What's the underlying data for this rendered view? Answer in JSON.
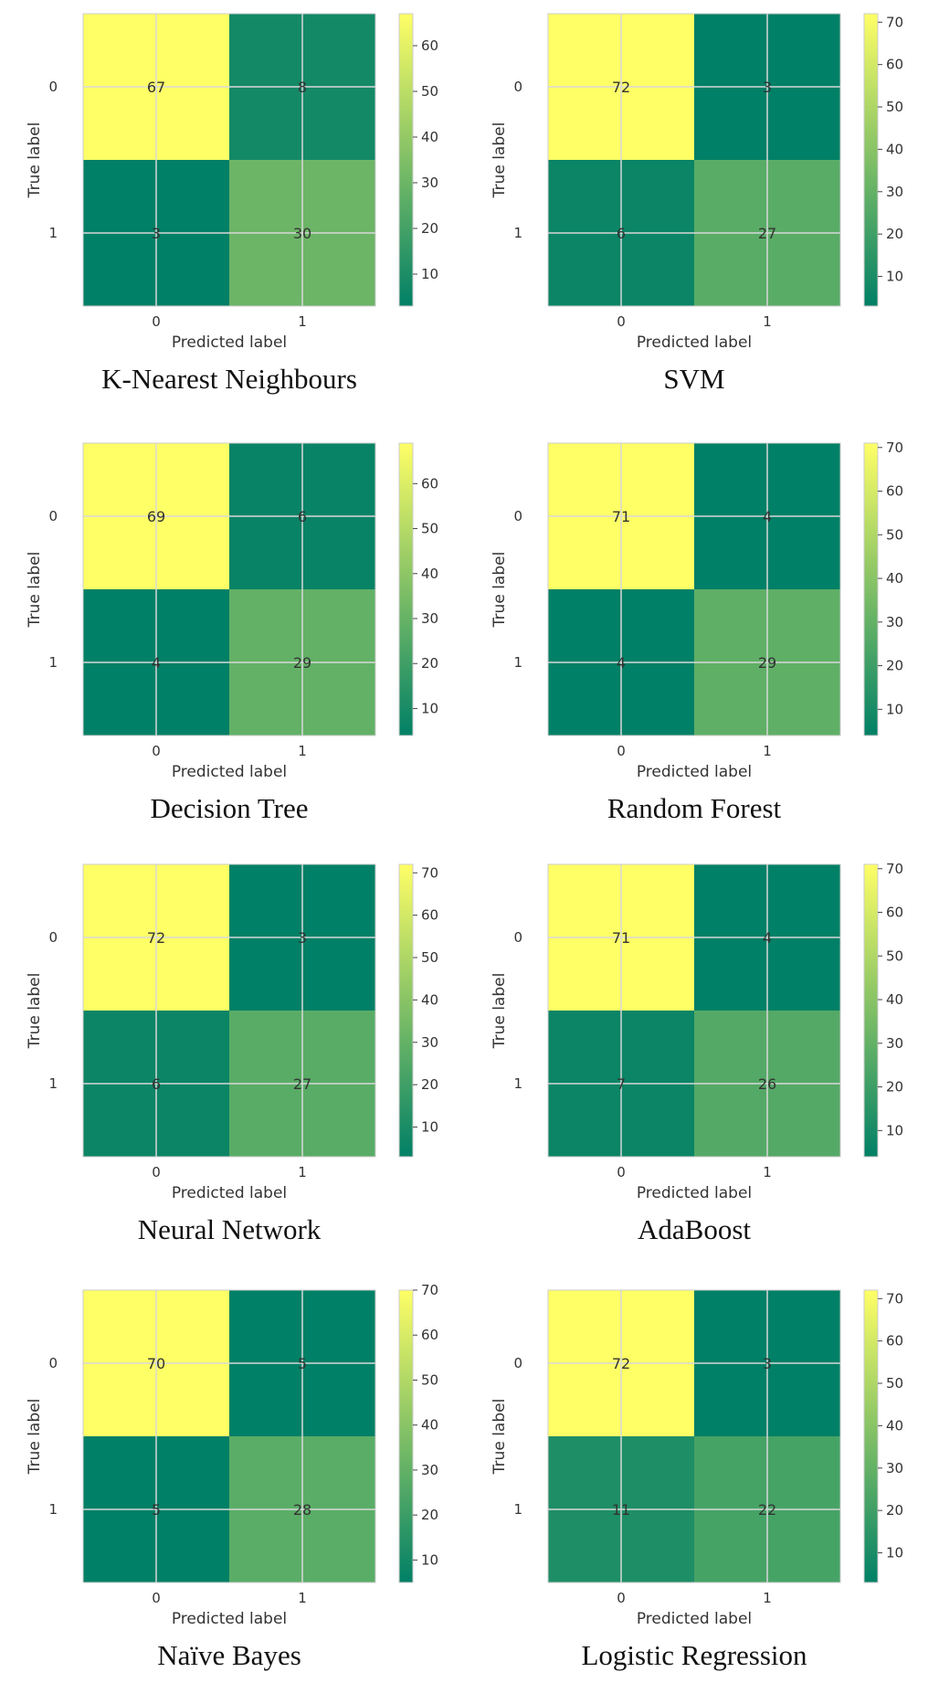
{
  "chart_data": [
    {
      "type": "heatmap",
      "caption": "K-Nearest Neighbours",
      "xlabel": "Predicted label",
      "ylabel": "True label",
      "x_categories": [
        "0",
        "1"
      ],
      "y_categories": [
        "0",
        "1"
      ],
      "values": [
        [
          67,
          8
        ],
        [
          3,
          30
        ]
      ],
      "colorbar_ticks": [
        10,
        20,
        30,
        40,
        50,
        60
      ],
      "colormap": "summer",
      "grid": true
    },
    {
      "type": "heatmap",
      "caption": "SVM",
      "xlabel": "Predicted label",
      "ylabel": "True label",
      "x_categories": [
        "0",
        "1"
      ],
      "y_categories": [
        "0",
        "1"
      ],
      "values": [
        [
          72,
          3
        ],
        [
          6,
          27
        ]
      ],
      "colorbar_ticks": [
        10,
        20,
        30,
        40,
        50,
        60,
        70
      ],
      "colormap": "summer",
      "grid": true
    },
    {
      "type": "heatmap",
      "caption": "Decision Tree",
      "xlabel": "Predicted label",
      "ylabel": "True label",
      "x_categories": [
        "0",
        "1"
      ],
      "y_categories": [
        "0",
        "1"
      ],
      "values": [
        [
          69,
          6
        ],
        [
          4,
          29
        ]
      ],
      "colorbar_ticks": [
        10,
        20,
        30,
        40,
        50,
        60
      ],
      "colormap": "summer",
      "grid": true
    },
    {
      "type": "heatmap",
      "caption": "Random Forest",
      "xlabel": "Predicted label",
      "ylabel": "True label",
      "x_categories": [
        "0",
        "1"
      ],
      "y_categories": [
        "0",
        "1"
      ],
      "values": [
        [
          71,
          4
        ],
        [
          4,
          29
        ]
      ],
      "colorbar_ticks": [
        10,
        20,
        30,
        40,
        50,
        60,
        70
      ],
      "colormap": "summer",
      "grid": true
    },
    {
      "type": "heatmap",
      "caption": "Neural Network",
      "xlabel": "Predicted label",
      "ylabel": "True label",
      "x_categories": [
        "0",
        "1"
      ],
      "y_categories": [
        "0",
        "1"
      ],
      "values": [
        [
          72,
          3
        ],
        [
          6,
          27
        ]
      ],
      "colorbar_ticks": [
        10,
        20,
        30,
        40,
        50,
        60,
        70
      ],
      "colormap": "summer",
      "grid": true
    },
    {
      "type": "heatmap",
      "caption": "AdaBoost",
      "xlabel": "Predicted label",
      "ylabel": "True label",
      "x_categories": [
        "0",
        "1"
      ],
      "y_categories": [
        "0",
        "1"
      ],
      "values": [
        [
          71,
          4
        ],
        [
          7,
          26
        ]
      ],
      "colorbar_ticks": [
        10,
        20,
        30,
        40,
        50,
        60,
        70
      ],
      "colormap": "summer",
      "grid": true
    },
    {
      "type": "heatmap",
      "caption": "Naïve Bayes",
      "xlabel": "Predicted label",
      "ylabel": "True label",
      "x_categories": [
        "0",
        "1"
      ],
      "y_categories": [
        "0",
        "1"
      ],
      "values": [
        [
          70,
          5
        ],
        [
          5,
          28
        ]
      ],
      "colorbar_ticks": [
        10,
        20,
        30,
        40,
        50,
        60,
        70
      ],
      "colormap": "summer",
      "grid": true
    },
    {
      "type": "heatmap",
      "caption": "Logistic Regression",
      "xlabel": "Predicted label",
      "ylabel": "True label",
      "x_categories": [
        "0",
        "1"
      ],
      "y_categories": [
        "0",
        "1"
      ],
      "values": [
        [
          72,
          3
        ],
        [
          11,
          22
        ]
      ],
      "colorbar_ticks": [
        10,
        20,
        30,
        40,
        50,
        60,
        70
      ],
      "colormap": "summer",
      "grid": true
    }
  ]
}
